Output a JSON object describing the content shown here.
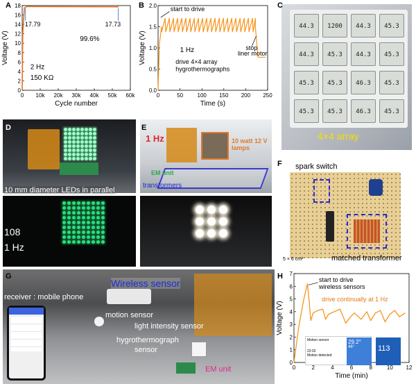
{
  "panels": {
    "A": {
      "label": "A",
      "chart_data": {
        "type": "line",
        "xlabel": "Cycle number",
        "ylabel": "Voltage (V)",
        "xticks": [
          "0",
          "10k",
          "20k",
          "30k",
          "40k",
          "50k",
          "60k"
        ],
        "yticks": [
          "0",
          "2",
          "4",
          "6",
          "8",
          "10",
          "12",
          "14",
          "16",
          "18"
        ],
        "xlim": [
          0,
          60000
        ],
        "ylim": [
          0,
          18
        ],
        "series": [
          {
            "x": [
              0,
              300,
              1200,
              2500,
              10000,
              20000,
              30000,
              40000,
              50000,
              53500
            ],
            "y": [
              0,
              12,
              17.5,
              17.79,
              17.78,
              17.77,
              17.76,
              17.75,
              17.74,
              17.73
            ]
          }
        ],
        "annotations": [
          "17.79",
          "17.73",
          "99.6%",
          "2 Hz",
          "150 KΩ"
        ],
        "color": "#e8701c"
      }
    },
    "B": {
      "label": "B",
      "chart_data": {
        "type": "line",
        "xlabel": "Time (s)",
        "ylabel": "Voltage (V)",
        "xticks": [
          "0",
          "50",
          "100",
          "150",
          "200",
          "250"
        ],
        "yticks": [
          "0.0",
          "0.5",
          "1.0",
          "1.5",
          "2.0"
        ],
        "xlim": [
          0,
          250
        ],
        "ylim": [
          0,
          2.0
        ],
        "rise": {
          "t": [
            0,
            3,
            8
          ],
          "v": [
            0,
            1.1,
            1.5
          ]
        },
        "oscillation": {
          "t_start": 8,
          "t_end": 222,
          "period": 9.5,
          "v_low": 1.38,
          "v_high": 1.7
        },
        "fall": {
          "t": [
            222,
            228,
            245
          ],
          "v": [
            1.5,
            0.78,
            0.78
          ]
        },
        "annotations": [
          "start to drive",
          "stop",
          "liner motor",
          "1 Hz",
          "drive 4×4 array",
          "hygrothermographs"
        ],
        "color": "#f7941d"
      }
    },
    "C": {
      "label": "C",
      "caption": "4×4 array",
      "displays": [
        [
          "44.3",
          "1200",
          "44.3",
          "45.3"
        ],
        [
          "44.3",
          "45.3",
          "44.3",
          "45.3"
        ],
        [
          "45.3",
          "45.3",
          "46.3",
          "45.3"
        ],
        [
          "45.3",
          "45.3",
          "46.3",
          "45.3"
        ]
      ]
    },
    "D": {
      "label": "D",
      "caption_top": "10 mm diameter LEDs in parallel",
      "count": "108",
      "freq": "1 Hz"
    },
    "E": {
      "label": "E",
      "freq": "1 Hz",
      "lamps": "10 watt 12 V lamps",
      "em_unit": "EM unit",
      "transformers": "transformers"
    },
    "F": {
      "label": "F",
      "spark": "spark switch",
      "matched": "matched transformer",
      "size": "5 × 6 cm²"
    },
    "G": {
      "label": "G",
      "wireless": "Wireless sensor",
      "receiver": "receiver : mobile phone",
      "motion": "motion sensor",
      "light": "light intensity sensor",
      "hygro": "hygrothermograph",
      "sensor": "sensor",
      "em": "EM unit"
    },
    "H": {
      "label": "H",
      "chart_data": {
        "type": "line",
        "xlabel": "Time (min)",
        "ylabel": "Voltage (V)",
        "xticks": [
          "0",
          "2",
          "4",
          "6",
          "8",
          "10",
          "12"
        ],
        "yticks": [
          "0",
          "1",
          "2",
          "3",
          "4",
          "5",
          "6",
          "7"
        ],
        "xlim": [
          0,
          12
        ],
        "ylim": [
          0,
          7
        ],
        "series": [
          {
            "x": [
              0,
              0.5,
              1.0,
              1.4,
              1.6,
              1.75,
              2.0,
              2.5,
              3.0,
              3.3,
              3.6,
              4.2,
              4.8,
              5.4,
              5.9,
              6.3,
              7.0,
              7.6,
              8.0,
              8.5,
              9.0,
              9.5,
              10.0,
              10.5,
              11.0,
              11.6
            ],
            "y": [
              0,
              2.8,
              4.9,
              6.2,
              4.7,
              3.3,
              3.9,
              4.1,
              4.2,
              3.4,
              3.8,
              4.0,
              4.2,
              3.1,
              3.6,
              3.9,
              3.4,
              4.0,
              3.3,
              3.9,
              4.1,
              3.2,
              3.8,
              4.1,
              3.6,
              3.9
            ]
          }
        ],
        "annotations": [
          "start to drive",
          "wireless sensors",
          "drive continually at 1 Hz"
        ],
        "color": "#f7941d",
        "inset": {
          "title": "Motion sensor",
          "time": "22:02",
          "status": "Motion detected",
          "temp": "29.2°",
          "humidity": "46°",
          "lux": "113"
        }
      }
    }
  }
}
